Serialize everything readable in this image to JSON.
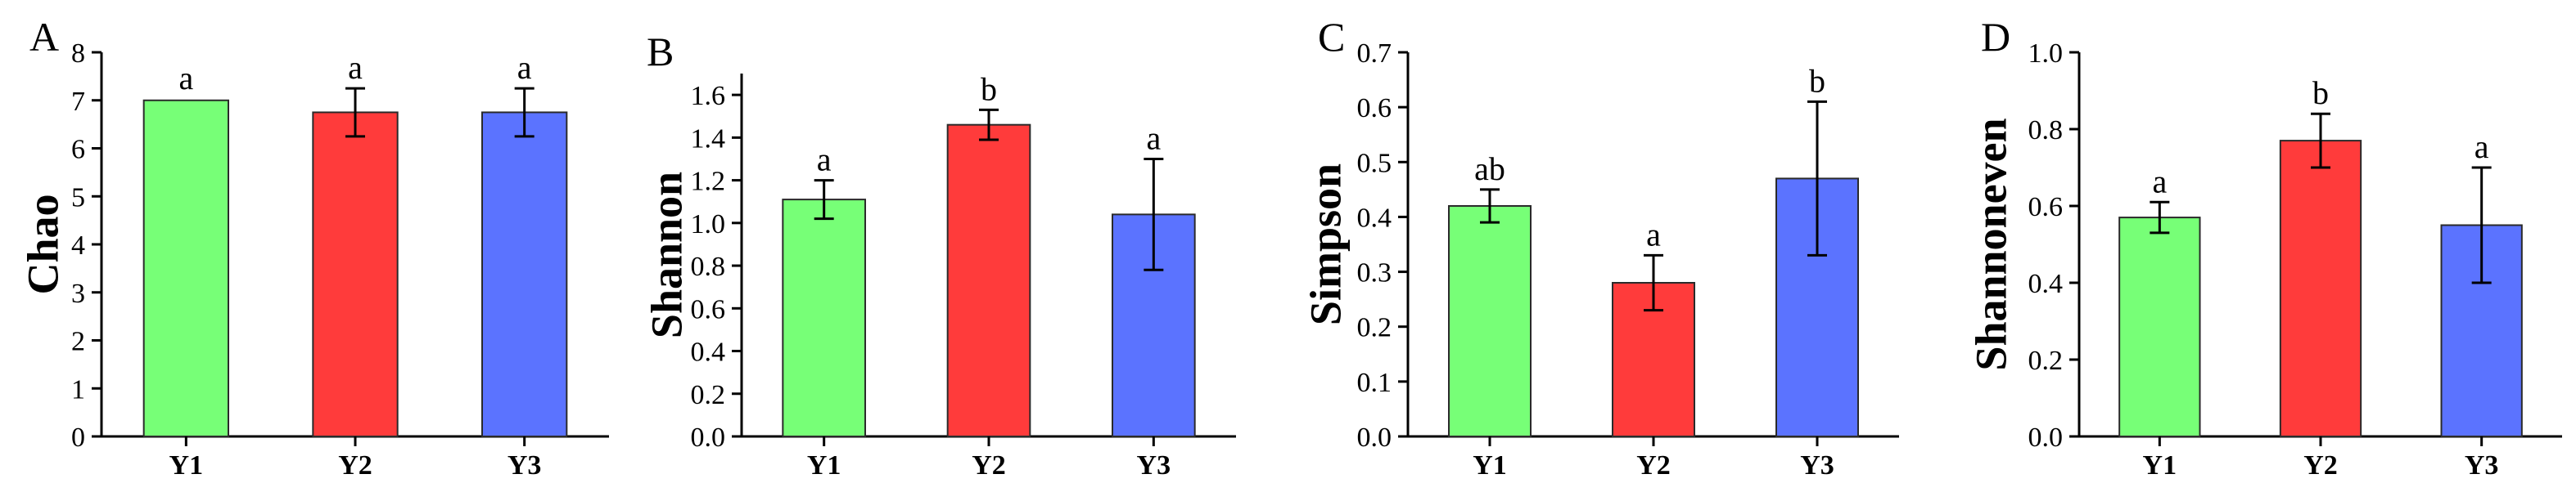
{
  "chart_data": [
    {
      "type": "bar",
      "panel": "A",
      "ylabel": "Chao",
      "categories": [
        "Y1",
        "Y2",
        "Y3"
      ],
      "values": [
        7.0,
        6.75,
        6.75
      ],
      "errors": [
        0.0,
        0.5,
        0.5
      ],
      "significance": [
        "a",
        "a",
        "a"
      ],
      "ylim": [
        0,
        8
      ],
      "yticks": [
        0,
        1,
        2,
        3,
        4,
        5,
        6,
        7,
        8
      ],
      "ytick_labels": [
        "0",
        "1",
        "2",
        "3",
        "4",
        "5",
        "6",
        "7",
        "8"
      ]
    },
    {
      "type": "bar",
      "panel": "B",
      "ylabel": "Shannon",
      "categories": [
        "Y1",
        "Y2",
        "Y3"
      ],
      "values": [
        1.11,
        1.46,
        1.04
      ],
      "errors": [
        0.09,
        0.07,
        0.26
      ],
      "significance": [
        "a",
        "b",
        "a"
      ],
      "ylim": [
        0,
        1.7
      ],
      "yticks": [
        0,
        0.2,
        0.4,
        0.6,
        0.8,
        1.0,
        1.2,
        1.4,
        1.6
      ],
      "ytick_labels": [
        "0.0",
        "0.2",
        "0.4",
        "0.6",
        "0.8",
        "1.0",
        "1.2",
        "1.4",
        "1.6"
      ]
    },
    {
      "type": "bar",
      "panel": "C",
      "ylabel": "Simpson",
      "categories": [
        "Y1",
        "Y2",
        "Y3"
      ],
      "values": [
        0.42,
        0.28,
        0.47
      ],
      "errors": [
        0.03,
        0.05,
        0.14
      ],
      "significance": [
        "ab",
        "a",
        "b"
      ],
      "ylim": [
        0,
        0.7
      ],
      "yticks": [
        0,
        0.1,
        0.2,
        0.3,
        0.4,
        0.5,
        0.6,
        0.7
      ],
      "ytick_labels": [
        "0.0",
        "0.1",
        "0.2",
        "0.3",
        "0.4",
        "0.5",
        "0.6",
        "0.7"
      ]
    },
    {
      "type": "bar",
      "panel": "D",
      "ylabel": "Shannoneven",
      "categories": [
        "Y1",
        "Y2",
        "Y3"
      ],
      "values": [
        0.57,
        0.77,
        0.55
      ],
      "errors": [
        0.04,
        0.07,
        0.15
      ],
      "significance": [
        "a",
        "b",
        "a"
      ],
      "ylim": [
        0,
        1.0
      ],
      "yticks": [
        0,
        0.2,
        0.4,
        0.6,
        0.8,
        1.0
      ],
      "ytick_labels": [
        "0.0",
        "0.2",
        "0.4",
        "0.6",
        "0.8",
        "1.0"
      ]
    }
  ],
  "colors": {
    "Y1": "#77ff77",
    "Y2": "#ff3b3b",
    "Y3": "#5b73ff"
  }
}
